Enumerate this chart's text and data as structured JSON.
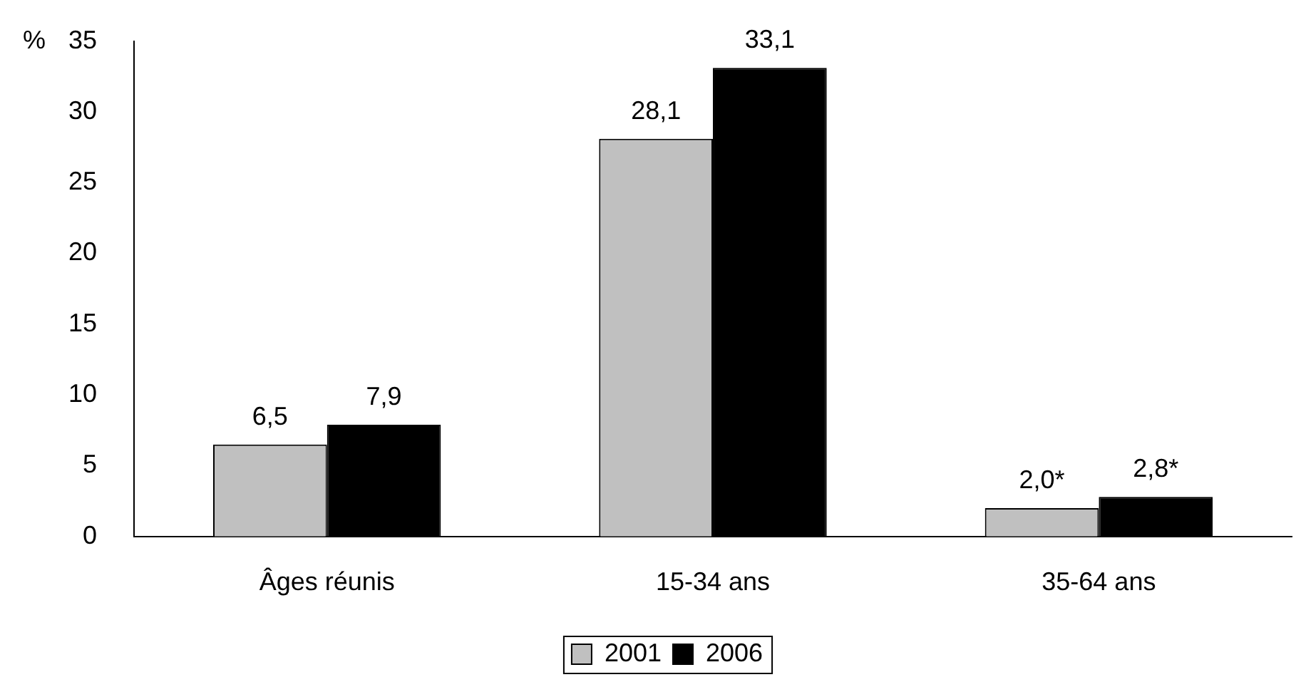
{
  "chart_data": {
    "type": "bar",
    "ylabel": "%",
    "categories": [
      "Âges réunis",
      "15-34 ans",
      "35-64 ans"
    ],
    "series": [
      {
        "name": "2001",
        "color": "#c0c0c0",
        "values": [
          6.5,
          28.1,
          2.0
        ],
        "value_labels": [
          "6,5",
          "28,1",
          "2,0*"
        ]
      },
      {
        "name": "2006",
        "color": "#000000",
        "values": [
          7.9,
          33.1,
          2.8
        ],
        "value_labels": [
          "7,9",
          "33,1",
          "2,8*"
        ]
      }
    ],
    "ylim": [
      0,
      35
    ],
    "yticks": [
      0,
      5,
      10,
      15,
      20,
      25,
      30,
      35
    ],
    "grid": false,
    "legend": "bottom"
  }
}
